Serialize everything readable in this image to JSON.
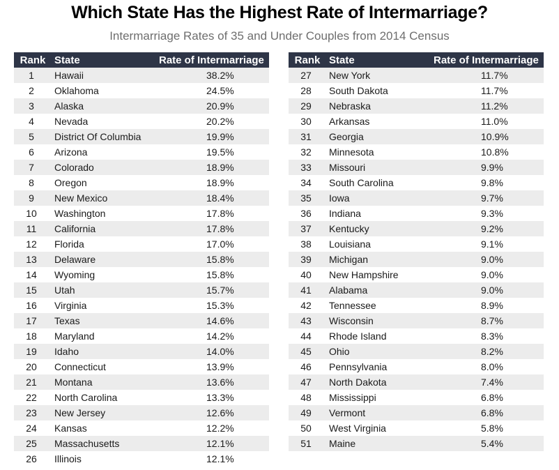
{
  "title": "Which State Has the Highest Rate of Intermarriage?",
  "subtitle": "Intermarriage Rates of 35 and Under Couples from 2014 Census",
  "columns": {
    "rank": "Rank",
    "state": "State",
    "rate": "Rate of Intermarriage"
  },
  "colors": {
    "header_bg": "#2e3547",
    "header_text": "#ffffff",
    "zebra": "#ececec"
  },
  "left_table": [
    {
      "rank": "1",
      "state": "Hawaii",
      "rate": "38.2%"
    },
    {
      "rank": "2",
      "state": "Oklahoma",
      "rate": "24.5%"
    },
    {
      "rank": "3",
      "state": "Alaska",
      "rate": "20.9%"
    },
    {
      "rank": "4",
      "state": "Nevada",
      "rate": "20.2%"
    },
    {
      "rank": "5",
      "state": "District Of Columbia",
      "rate": "19.9%"
    },
    {
      "rank": "6",
      "state": "Arizona",
      "rate": "19.5%"
    },
    {
      "rank": "7",
      "state": "Colorado",
      "rate": "18.9%"
    },
    {
      "rank": "8",
      "state": "Oregon",
      "rate": "18.9%"
    },
    {
      "rank": "9",
      "state": "New Mexico",
      "rate": "18.4%"
    },
    {
      "rank": "10",
      "state": "Washington",
      "rate": "17.8%"
    },
    {
      "rank": "11",
      "state": "California",
      "rate": "17.8%"
    },
    {
      "rank": "12",
      "state": "Florida",
      "rate": "17.0%"
    },
    {
      "rank": "13",
      "state": "Delaware",
      "rate": "15.8%"
    },
    {
      "rank": "14",
      "state": "Wyoming",
      "rate": "15.8%"
    },
    {
      "rank": "15",
      "state": "Utah",
      "rate": "15.7%"
    },
    {
      "rank": "16",
      "state": "Virginia",
      "rate": "15.3%"
    },
    {
      "rank": "17",
      "state": "Texas",
      "rate": "14.6%"
    },
    {
      "rank": "18",
      "state": "Maryland",
      "rate": "14.2%"
    },
    {
      "rank": "19",
      "state": "Idaho",
      "rate": "14.0%"
    },
    {
      "rank": "20",
      "state": "Connecticut",
      "rate": "13.9%"
    },
    {
      "rank": "21",
      "state": "Montana",
      "rate": "13.6%"
    },
    {
      "rank": "22",
      "state": "North Carolina",
      "rate": "13.3%"
    },
    {
      "rank": "23",
      "state": "New Jersey",
      "rate": "12.6%"
    },
    {
      "rank": "24",
      "state": "Kansas",
      "rate": "12.2%"
    },
    {
      "rank": "25",
      "state": "Massachusetts",
      "rate": "12.1%"
    },
    {
      "rank": "26",
      "state": "Illinois",
      "rate": "12.1%"
    }
  ],
  "right_table": [
    {
      "rank": "27",
      "state": "New York",
      "rate": "11.7%"
    },
    {
      "rank": "28",
      "state": "South Dakota",
      "rate": "11.7%"
    },
    {
      "rank": "29",
      "state": "Nebraska",
      "rate": "11.2%"
    },
    {
      "rank": "30",
      "state": "Arkansas",
      "rate": "11.0%"
    },
    {
      "rank": "31",
      "state": "Georgia",
      "rate": "10.9%"
    },
    {
      "rank": "32",
      "state": "Minnesota",
      "rate": "10.8%"
    },
    {
      "rank": "33",
      "state": "Missouri",
      "rate": "9.9%"
    },
    {
      "rank": "34",
      "state": "South Carolina",
      "rate": "9.8%"
    },
    {
      "rank": "35",
      "state": "Iowa",
      "rate": "9.7%"
    },
    {
      "rank": "36",
      "state": "Indiana",
      "rate": "9.3%"
    },
    {
      "rank": "37",
      "state": "Kentucky",
      "rate": "9.2%"
    },
    {
      "rank": "38",
      "state": "Louisiana",
      "rate": "9.1%"
    },
    {
      "rank": "39",
      "state": "Michigan",
      "rate": "9.0%"
    },
    {
      "rank": "40",
      "state": "New Hampshire",
      "rate": "9.0%"
    },
    {
      "rank": "41",
      "state": "Alabama",
      "rate": "9.0%"
    },
    {
      "rank": "42",
      "state": "Tennessee",
      "rate": "8.9%"
    },
    {
      "rank": "43",
      "state": "Wisconsin",
      "rate": "8.7%"
    },
    {
      "rank": "44",
      "state": "Rhode Island",
      "rate": "8.3%"
    },
    {
      "rank": "45",
      "state": "Ohio",
      "rate": "8.2%"
    },
    {
      "rank": "46",
      "state": "Pennsylvania",
      "rate": "8.0%"
    },
    {
      "rank": "47",
      "state": "North Dakota",
      "rate": "7.4%"
    },
    {
      "rank": "48",
      "state": "Mississippi",
      "rate": "6.8%"
    },
    {
      "rank": "49",
      "state": "Vermont",
      "rate": "6.8%"
    },
    {
      "rank": "50",
      "state": "West Virginia",
      "rate": "5.8%"
    },
    {
      "rank": "51",
      "state": "Maine",
      "rate": "5.4%"
    }
  ]
}
